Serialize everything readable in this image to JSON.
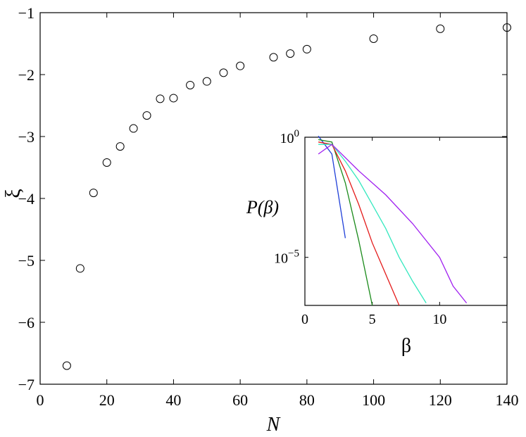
{
  "chart_data": [
    {
      "type": "scatter",
      "xlabel": "N",
      "ylabel": "ξ",
      "xlim": [
        0,
        140
      ],
      "ylim": [
        -7,
        -1
      ],
      "xticks": [
        "0",
        "20",
        "40",
        "60",
        "80",
        "100",
        "120",
        "140"
      ],
      "yticks": [
        "−7",
        "−6",
        "−5",
        "−4",
        "−3",
        "−2",
        "−1"
      ],
      "marker": "open-circle",
      "series": [
        {
          "x": [
            8,
            12,
            16,
            20,
            24,
            28,
            32,
            36,
            40,
            45,
            50,
            55,
            60,
            70,
            75,
            80,
            100,
            120,
            140
          ],
          "y": [
            -6.7,
            -5.13,
            -3.91,
            -3.42,
            -3.16,
            -2.87,
            -2.66,
            -2.39,
            -2.38,
            -2.17,
            -2.11,
            -1.97,
            -1.86,
            -1.72,
            -1.66,
            -1.59,
            -1.42,
            -1.26,
            -1.24
          ]
        }
      ]
    },
    {
      "type": "line",
      "inset": true,
      "xlabel": "β",
      "ylabel": "P(β)",
      "xlim": [
        0,
        15
      ],
      "ylim_log10": [
        -7,
        0
      ],
      "yscale": "log",
      "xticks": [
        "0",
        "5",
        "10"
      ],
      "yticks": [
        {
          "base": "10",
          "exp": "0",
          "value": 0
        },
        {
          "base": "10",
          "exp": "−5",
          "value": -5
        }
      ],
      "series": [
        {
          "color": "#1f3fd8",
          "x": [
            1,
            2,
            3
          ],
          "log10y": [
            0.05,
            -0.7,
            -4.2
          ]
        },
        {
          "color": "#1a8a1a",
          "x": [
            1,
            2,
            3,
            4,
            5
          ],
          "log10y": [
            -0.1,
            -0.2,
            -1.9,
            -4.3,
            -7.0
          ]
        },
        {
          "color": "#e41a1a",
          "x": [
            1,
            2,
            3,
            4,
            5,
            6,
            7
          ],
          "log10y": [
            -0.2,
            -0.3,
            -1.4,
            -2.8,
            -4.4,
            -5.7,
            -7.0
          ]
        },
        {
          "color": "#34e8bf",
          "x": [
            1,
            2,
            3,
            4,
            5,
            6,
            7,
            8,
            9
          ],
          "log10y": [
            -0.3,
            -0.3,
            -1.0,
            -1.8,
            -2.8,
            -3.8,
            -5.0,
            -6.0,
            -6.9
          ]
        },
        {
          "color": "#a020f0",
          "x": [
            1,
            2,
            4,
            6,
            8,
            10,
            11,
            12
          ],
          "log10y": [
            -0.7,
            -0.3,
            -1.4,
            -2.4,
            -3.6,
            -5.0,
            -6.2,
            -6.9
          ]
        }
      ]
    }
  ]
}
